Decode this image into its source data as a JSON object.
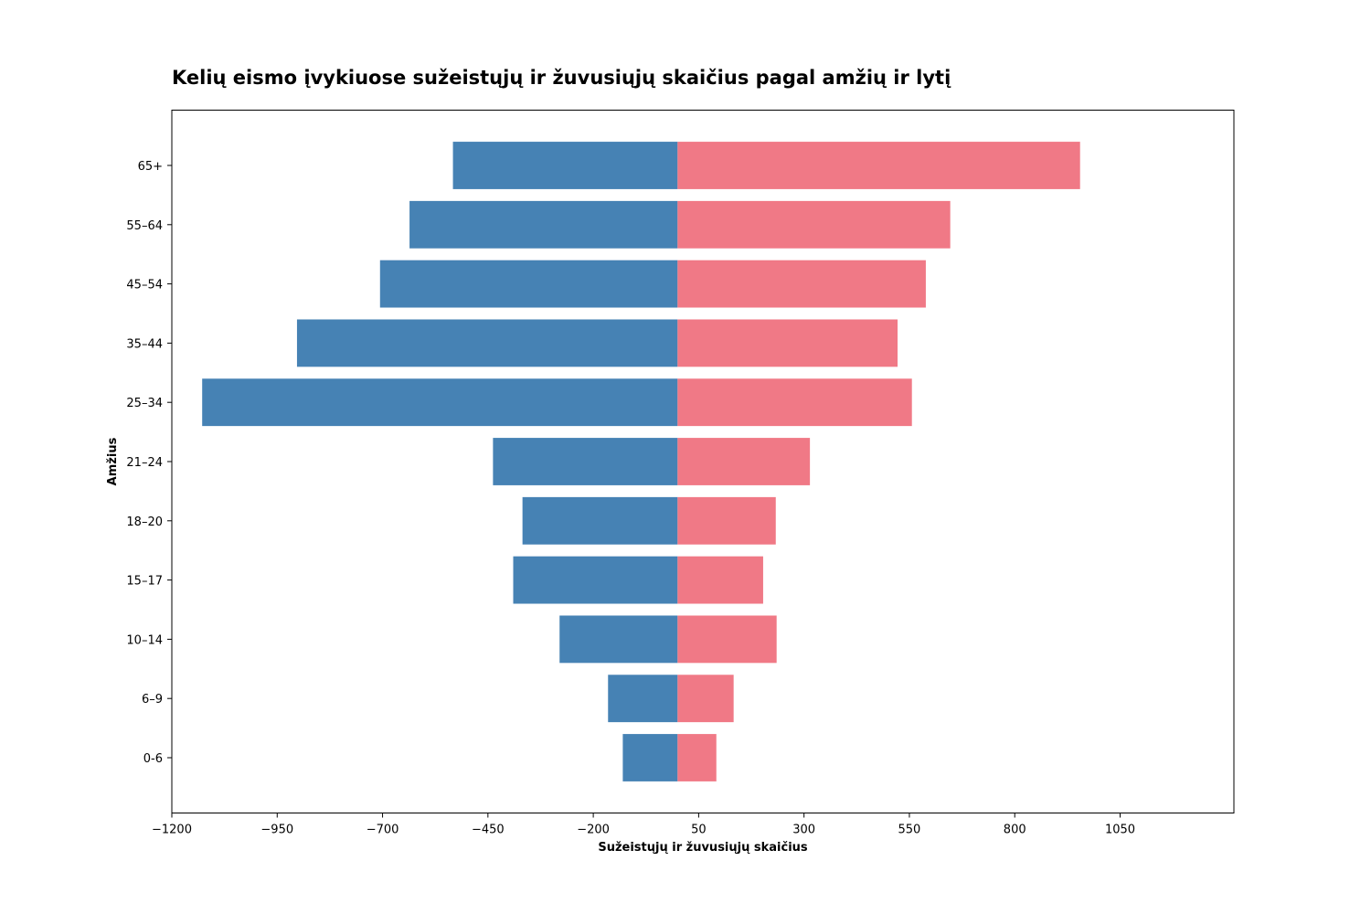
{
  "chart_data": {
    "type": "bar",
    "orientation": "horizontal",
    "title": "Kelių eismo įvykiuose sužeistųjų ir žuvusiųjų skaičius pagal amžių ir lytį",
    "xlabel": "Sužeistųjų ir žuvusiųjų skaičius",
    "ylabel": "Amžius",
    "xlim": [
      -1200,
      1320
    ],
    "xticks": [
      -1200,
      -950,
      -700,
      -450,
      -200,
      50,
      300,
      550,
      800,
      1050
    ],
    "xtick_labels": [
      "−1200",
      "−950",
      "−700",
      "−450",
      "−200",
      "50",
      "300",
      "550",
      "800",
      "1050"
    ],
    "categories": [
      "0-6",
      "6–9",
      "10–14",
      "15–17",
      "18–20",
      "21–24",
      "25–34",
      "35–44",
      "45–54",
      "55–64",
      "65+"
    ],
    "series": [
      {
        "color": "#4682b4",
        "values": [
          -130,
          -165,
          -280,
          -390,
          -368,
          -438,
          -1128,
          -903,
          -706,
          -636,
          -533
        ]
      },
      {
        "color": "#f07986",
        "values": [
          92,
          133,
          235,
          203,
          233,
          314,
          556,
          522,
          589,
          647,
          955
        ]
      }
    ],
    "grid": false,
    "legend": "none"
  }
}
